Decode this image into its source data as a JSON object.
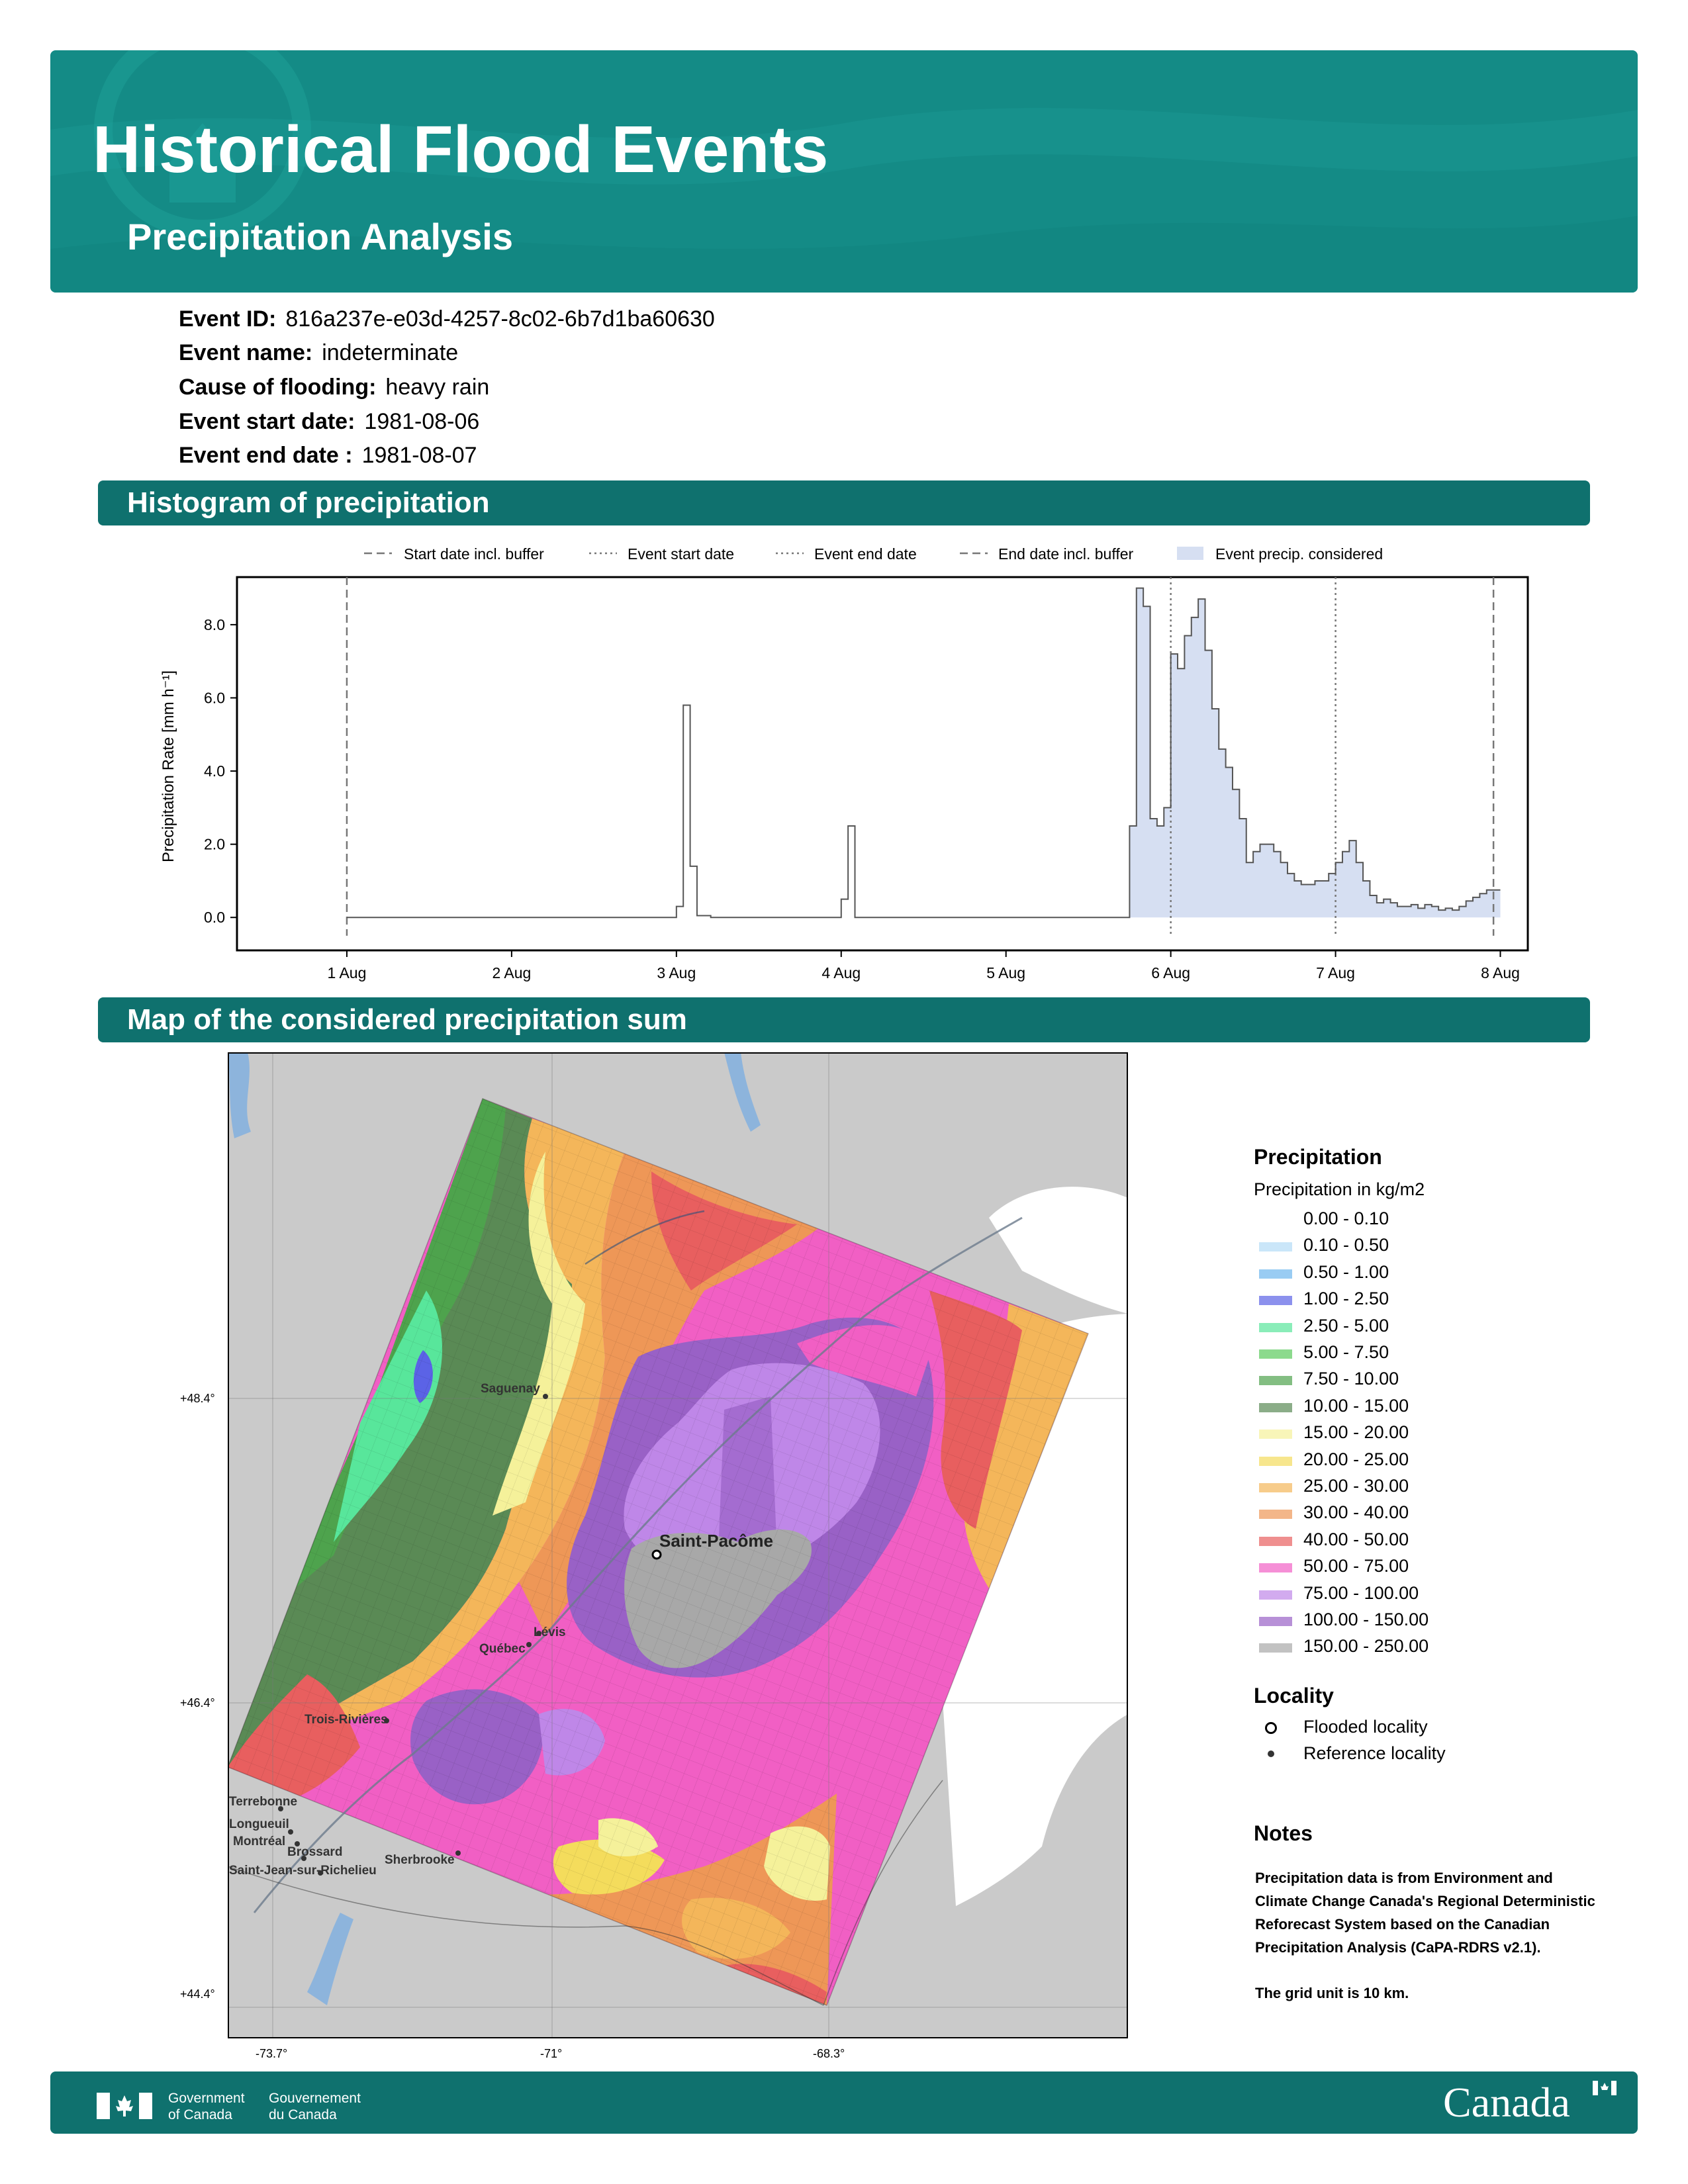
{
  "header": {
    "title": "Historical Flood Events",
    "subtitle": "Precipitation Analysis"
  },
  "event": [
    {
      "key": "Event ID:",
      "value": "816a237e-e03d-4257-8c02-6b7d1ba60630"
    },
    {
      "key": "Event name:",
      "value": "indeterminate"
    },
    {
      "key": "Cause of flooding:",
      "value": "heavy rain"
    },
    {
      "key": "Event start date:",
      "value": "1981-08-06"
    },
    {
      "key": "Event end date :",
      "value": "1981-08-07"
    }
  ],
  "sections": {
    "histogram": "Histogram of precipitation",
    "map": "Map of the considered precipitation sum"
  },
  "chart_data": {
    "type": "area",
    "title": "",
    "xlabel": "",
    "ylabel": "Precipitation Rate [mm h⁻¹]",
    "ylim": [
      -0.9,
      9.3
    ],
    "xlim": [
      "1981-07-31T08:00",
      "1981-08-08T04:00"
    ],
    "x_ticks": [
      "1 Aug",
      "2 Aug",
      "3 Aug",
      "4 Aug",
      "5 Aug",
      "6 Aug",
      "7 Aug",
      "8 Aug"
    ],
    "y_ticks": [
      "0.0",
      "2.0",
      "4.0",
      "6.0",
      "8.0"
    ],
    "legend": [
      "Start date incl. buffer",
      "Event start date",
      "Event end date",
      "End date incl. buffer",
      "Event precip. considered"
    ],
    "legend_position": "top",
    "grid": false,
    "markers": {
      "start_buffer": "1981-08-01T00:00",
      "event_start": "1981-08-06T00:00",
      "event_end": "1981-08-07T00:00",
      "end_buffer": "1981-08-07T23:00"
    },
    "considered_range": [
      "1981-08-05T18:00",
      "1981-08-07T23:00"
    ],
    "x": [
      "1981-08-01T00:00",
      "1981-08-03T00:00",
      "1981-08-03T01:00",
      "1981-08-03T02:00",
      "1981-08-03T03:00",
      "1981-08-03T04:00",
      "1981-08-03T05:00",
      "1981-08-03T06:00",
      "1981-08-04T00:00",
      "1981-08-04T01:00",
      "1981-08-04T02:00",
      "1981-08-04T03:00",
      "1981-08-05T18:00",
      "1981-08-05T19:00",
      "1981-08-05T20:00",
      "1981-08-05T21:00",
      "1981-08-05T22:00",
      "1981-08-05T23:00",
      "1981-08-06T00:00",
      "1981-08-06T01:00",
      "1981-08-06T02:00",
      "1981-08-06T03:00",
      "1981-08-06T04:00",
      "1981-08-06T05:00",
      "1981-08-06T06:00",
      "1981-08-06T07:00",
      "1981-08-06T08:00",
      "1981-08-06T09:00",
      "1981-08-06T10:00",
      "1981-08-06T11:00",
      "1981-08-06T12:00",
      "1981-08-06T13:00",
      "1981-08-06T14:00",
      "1981-08-06T15:00",
      "1981-08-06T16:00",
      "1981-08-06T17:00",
      "1981-08-06T18:00",
      "1981-08-06T19:00",
      "1981-08-06T20:00",
      "1981-08-06T21:00",
      "1981-08-06T22:00",
      "1981-08-06T23:00",
      "1981-08-07T00:00",
      "1981-08-07T01:00",
      "1981-08-07T02:00",
      "1981-08-07T03:00",
      "1981-08-07T04:00",
      "1981-08-07T05:00",
      "1981-08-07T06:00",
      "1981-08-07T07:00",
      "1981-08-07T08:00",
      "1981-08-07T09:00",
      "1981-08-07T10:00",
      "1981-08-07T11:00",
      "1981-08-07T12:00",
      "1981-08-07T13:00",
      "1981-08-07T14:00",
      "1981-08-07T15:00",
      "1981-08-07T16:00",
      "1981-08-07T17:00",
      "1981-08-07T18:00",
      "1981-08-07T19:00",
      "1981-08-07T20:00",
      "1981-08-07T21:00",
      "1981-08-07T22:00",
      "1981-08-07T23:00"
    ],
    "values": [
      0.0,
      0.3,
      5.8,
      1.4,
      0.05,
      0.05,
      0.0,
      0.0,
      0.5,
      2.5,
      0.0,
      0.0,
      2.5,
      9.0,
      8.5,
      2.7,
      2.5,
      3.0,
      7.2,
      6.8,
      7.7,
      8.2,
      8.7,
      7.3,
      5.7,
      4.6,
      4.1,
      3.5,
      2.7,
      1.5,
      1.8,
      2.0,
      2.0,
      1.8,
      1.5,
      1.2,
      1.0,
      0.9,
      0.9,
      1.0,
      1.0,
      1.2,
      1.5,
      1.8,
      2.1,
      1.5,
      1.0,
      0.6,
      0.4,
      0.5,
      0.4,
      0.3,
      0.3,
      0.35,
      0.25,
      0.35,
      0.3,
      0.2,
      0.25,
      0.2,
      0.3,
      0.45,
      0.55,
      0.65,
      0.75,
      0.75
    ]
  },
  "map": {
    "lat_ticks": [
      "+48.4°",
      "+46.4°",
      "+44.4°"
    ],
    "lon_ticks": [
      "-73.7°",
      "-71°",
      "-68.3°"
    ],
    "flooded": [
      {
        "name": "Saint-Pacôme"
      }
    ],
    "reference": [
      {
        "name": "Saguenay"
      },
      {
        "name": "Lévis"
      },
      {
        "name": "Québec"
      },
      {
        "name": "Trois-Rivières"
      },
      {
        "name": "Terrebonne"
      },
      {
        "name": "Longueuil"
      },
      {
        "name": "Montréal"
      },
      {
        "name": "Brossard"
      },
      {
        "name": "Sherbrooke"
      },
      {
        "name": "Saint-Jean-sur-Richelieu"
      }
    ]
  },
  "legend": {
    "title": "Precipitation",
    "subtitle": "Precipitation in kg/m2",
    "classes": [
      {
        "label": "0.00 - 0.10",
        "color": "#ffffff"
      },
      {
        "label": "0.10 - 0.50",
        "color": "#b3dcf7"
      },
      {
        "label": "0.50 - 1.00",
        "color": "#6db7ee"
      },
      {
        "label": "1.00 - 2.50",
        "color": "#5b63e6"
      },
      {
        "label": "2.50 - 5.00",
        "color": "#58e69b"
      },
      {
        "label": "5.00 - 7.50",
        "color": "#5bcb5d"
      },
      {
        "label": "7.50 - 10.00",
        "color": "#4ea34d"
      },
      {
        "label": "10.00 - 15.00",
        "color": "#5a8a55"
      },
      {
        "label": "15.00 - 20.00",
        "color": "#f5f19a"
      },
      {
        "label": "20.00 - 25.00",
        "color": "#f4dc5c"
      },
      {
        "label": "25.00 - 30.00",
        "color": "#f4b65a"
      },
      {
        "label": "30.00 - 40.00",
        "color": "#ee9757"
      },
      {
        "label": "40.00 - 50.00",
        "color": "#e85f5f"
      },
      {
        "label": "50.00 - 75.00",
        "color": "#f15fc4"
      },
      {
        "label": "75.00 - 100.00",
        "color": "#bf87e8"
      },
      {
        "label": "100.00 - 150.00",
        "color": "#9961c6"
      },
      {
        "label": "150.00 - 250.00",
        "color": "#a8a8a8"
      }
    ],
    "locality_title": "Locality",
    "locality": [
      "Flooded locality",
      "Reference locality"
    ]
  },
  "notes": {
    "title": "Notes",
    "paragraph1": "Precipitation data is from Environment and Climate Change Canada's Regional Deterministic Reforecast System based on the Canadian Precipitation Analysis (CaPA-RDRS v2.1).",
    "paragraph2": "The grid unit is 10 km."
  },
  "footer": {
    "gov_en_1": "Government",
    "gov_en_2": "of Canada",
    "gov_fr_1": "Gouvernement",
    "gov_fr_2": "du Canada",
    "wordmark": "Canada"
  },
  "colors": {
    "header": "#148b86",
    "section": "#0f716e",
    "fill": "#d6dff2"
  }
}
